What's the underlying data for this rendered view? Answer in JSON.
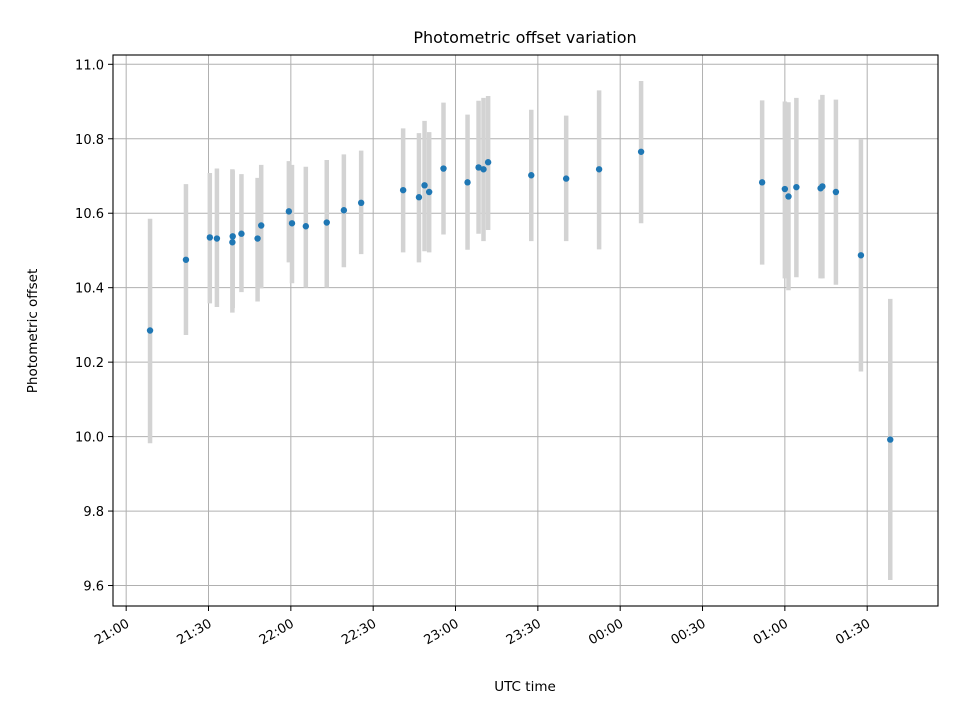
{
  "chart_data": {
    "type": "scatter",
    "title": "Photometric offset variation",
    "xlabel": "UTC time",
    "ylabel": "Photometric offset",
    "x_unit": "hours since 21:00 UTC",
    "xlim": [
      -0.08,
      4.93
    ],
    "ylim": [
      9.545,
      11.025
    ],
    "grid": true,
    "x_ticks": [
      {
        "value": 0.0,
        "label": "21:00"
      },
      {
        "value": 0.5,
        "label": "21:30"
      },
      {
        "value": 1.0,
        "label": "22:00"
      },
      {
        "value": 1.5,
        "label": "22:30"
      },
      {
        "value": 2.0,
        "label": "23:00"
      },
      {
        "value": 2.5,
        "label": "23:30"
      },
      {
        "value": 3.0,
        "label": "00:00"
      },
      {
        "value": 3.5,
        "label": "00:30"
      },
      {
        "value": 4.0,
        "label": "01:00"
      },
      {
        "value": 4.5,
        "label": "01:30"
      }
    ],
    "y_ticks": [
      {
        "value": 9.6,
        "label": "9.6"
      },
      {
        "value": 9.8,
        "label": "9.8"
      },
      {
        "value": 10.0,
        "label": "10.0"
      },
      {
        "value": 10.2,
        "label": "10.2"
      },
      {
        "value": 10.4,
        "label": "10.4"
      },
      {
        "value": 10.6,
        "label": "10.6"
      },
      {
        "value": 10.8,
        "label": "10.8"
      },
      {
        "value": 11.0,
        "label": "11.0"
      }
    ],
    "colors": {
      "point": "#1f77b4",
      "errorbar": "#d3d3d3",
      "grid": "#b0b0b0",
      "axis": "#000000"
    },
    "points": [
      {
        "x": 0.145,
        "y": 10.285,
        "lo": 9.982,
        "hi": 10.585
      },
      {
        "x": 0.363,
        "y": 10.475,
        "lo": 10.273,
        "hi": 10.678
      },
      {
        "x": 0.508,
        "y": 10.535,
        "lo": 10.358,
        "hi": 10.708
      },
      {
        "x": 0.551,
        "y": 10.532,
        "lo": 10.348,
        "hi": 10.72
      },
      {
        "x": 0.645,
        "y": 10.522,
        "lo": 10.333,
        "hi": 10.718
      },
      {
        "x": 0.647,
        "y": 10.538,
        "lo": 10.345,
        "hi": 10.715
      },
      {
        "x": 0.7,
        "y": 10.545,
        "lo": 10.388,
        "hi": 10.705
      },
      {
        "x": 0.798,
        "y": 10.532,
        "lo": 10.363,
        "hi": 10.695
      },
      {
        "x": 0.82,
        "y": 10.567,
        "lo": 10.398,
        "hi": 10.73
      },
      {
        "x": 0.988,
        "y": 10.605,
        "lo": 10.468,
        "hi": 10.74
      },
      {
        "x": 1.007,
        "y": 10.573,
        "lo": 10.412,
        "hi": 10.73
      },
      {
        "x": 1.091,
        "y": 10.565,
        "lo": 10.4,
        "hi": 10.725
      },
      {
        "x": 1.218,
        "y": 10.575,
        "lo": 10.4,
        "hi": 10.743
      },
      {
        "x": 1.322,
        "y": 10.608,
        "lo": 10.455,
        "hi": 10.758
      },
      {
        "x": 1.427,
        "y": 10.628,
        "lo": 10.49,
        "hi": 10.768
      },
      {
        "x": 1.682,
        "y": 10.662,
        "lo": 10.495,
        "hi": 10.828
      },
      {
        "x": 1.778,
        "y": 10.643,
        "lo": 10.468,
        "hi": 10.815
      },
      {
        "x": 1.812,
        "y": 10.675,
        "lo": 10.498,
        "hi": 10.848
      },
      {
        "x": 1.84,
        "y": 10.657,
        "lo": 10.495,
        "hi": 10.818
      },
      {
        "x": 1.927,
        "y": 10.72,
        "lo": 10.543,
        "hi": 10.897
      },
      {
        "x": 2.073,
        "y": 10.683,
        "lo": 10.502,
        "hi": 10.865
      },
      {
        "x": 2.14,
        "y": 10.723,
        "lo": 10.545,
        "hi": 10.902
      },
      {
        "x": 2.17,
        "y": 10.718,
        "lo": 10.525,
        "hi": 10.91
      },
      {
        "x": 2.198,
        "y": 10.737,
        "lo": 10.555,
        "hi": 10.915
      },
      {
        "x": 2.46,
        "y": 10.702,
        "lo": 10.525,
        "hi": 10.878
      },
      {
        "x": 2.672,
        "y": 10.693,
        "lo": 10.525,
        "hi": 10.862
      },
      {
        "x": 2.872,
        "y": 10.718,
        "lo": 10.503,
        "hi": 10.93
      },
      {
        "x": 3.127,
        "y": 10.765,
        "lo": 10.573,
        "hi": 10.955
      },
      {
        "x": 3.862,
        "y": 10.683,
        "lo": 10.462,
        "hi": 10.903
      },
      {
        "x": 4.0,
        "y": 10.665,
        "lo": 10.425,
        "hi": 10.9
      },
      {
        "x": 4.022,
        "y": 10.645,
        "lo": 10.393,
        "hi": 10.898
      },
      {
        "x": 4.07,
        "y": 10.67,
        "lo": 10.428,
        "hi": 10.91
      },
      {
        "x": 4.217,
        "y": 10.667,
        "lo": 10.425,
        "hi": 10.905
      },
      {
        "x": 4.228,
        "y": 10.672,
        "lo": 10.425,
        "hi": 10.918
      },
      {
        "x": 4.31,
        "y": 10.657,
        "lo": 10.408,
        "hi": 10.905
      },
      {
        "x": 4.462,
        "y": 10.487,
        "lo": 10.175,
        "hi": 10.798
      },
      {
        "x": 4.64,
        "y": 9.992,
        "lo": 9.615,
        "hi": 10.37
      }
    ]
  }
}
